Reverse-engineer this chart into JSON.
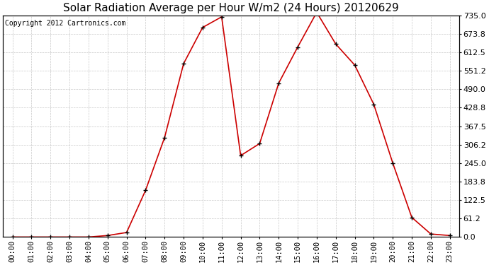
{
  "title": "Solar Radiation Average per Hour W/m2 (24 Hours) 20120629",
  "copyright": "Copyright 2012 Cartronics.com",
  "hours": [
    "00:00",
    "01:00",
    "02:00",
    "03:00",
    "04:00",
    "05:00",
    "06:00",
    "07:00",
    "08:00",
    "09:00",
    "10:00",
    "11:00",
    "12:00",
    "13:00",
    "14:00",
    "15:00",
    "16:00",
    "17:00",
    "18:00",
    "19:00",
    "20:00",
    "21:00",
    "22:00",
    "23:00"
  ],
  "values": [
    0,
    0,
    0,
    0,
    0,
    5,
    15,
    155,
    330,
    575,
    695,
    730,
    270,
    310,
    510,
    630,
    745,
    640,
    570,
    440,
    245,
    65,
    10,
    5
  ],
  "line_color": "#cc0000",
  "marker": "+",
  "marker_color": "#000000",
  "bg_color": "#ffffff",
  "plot_bg": "#ffffff",
  "grid_color": "#c8c8c8",
  "title_fontsize": 11,
  "copyright_fontsize": 7,
  "ytick_fontsize": 8,
  "xtick_fontsize": 7.5,
  "ylim": [
    0,
    735
  ],
  "yticks": [
    0.0,
    61.2,
    122.5,
    183.8,
    245.0,
    306.2,
    367.5,
    428.8,
    490.0,
    551.2,
    612.5,
    673.8,
    735.0
  ]
}
